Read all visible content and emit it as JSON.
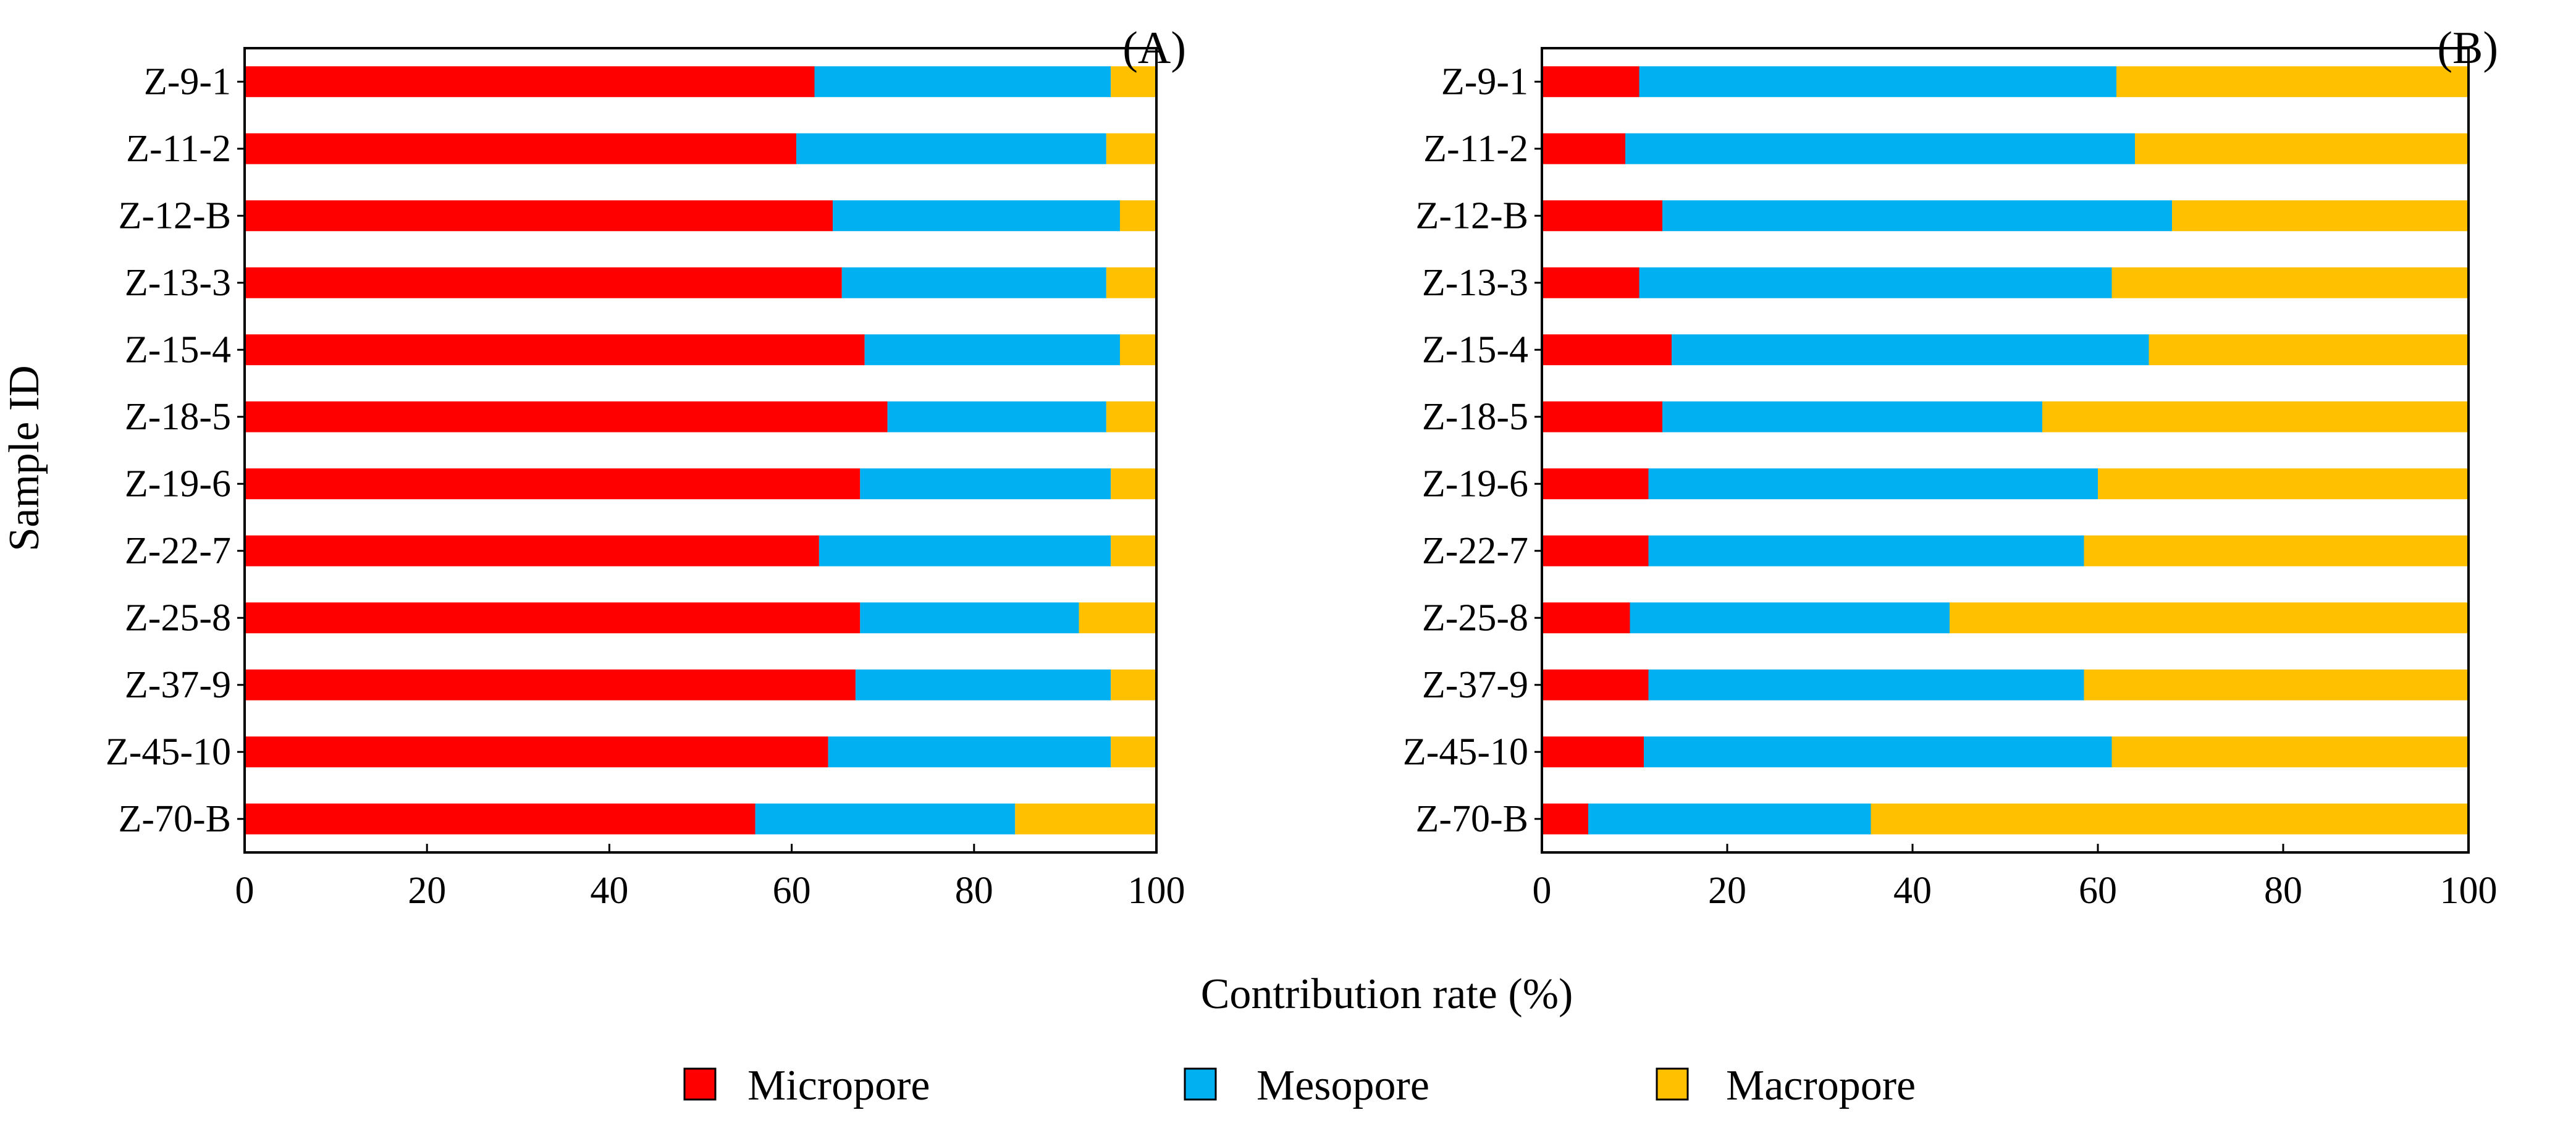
{
  "y_axis_title": "Sample ID",
  "shared_x_label": "Contribution rate (%)",
  "legend": {
    "items": [
      {
        "label": "Micropore",
        "color": "#ff0000"
      },
      {
        "label": "Mesopore",
        "color": "#00b0f0"
      },
      {
        "label": "Macropore",
        "color": "#ffc000"
      }
    ]
  },
  "chart_data": [
    {
      "type": "bar",
      "orientation": "horizontal",
      "stacked": true,
      "title": "(A)",
      "xlabel": "Contribution rate (%)",
      "ylabel": "Sample ID",
      "xlim": [
        0,
        100
      ],
      "xticks": [
        0,
        20,
        40,
        60,
        80,
        100
      ],
      "categories": [
        "Z-9-1",
        "Z-11-2",
        "Z-12-B",
        "Z-13-3",
        "Z-15-4",
        "Z-18-5",
        "Z-19-6",
        "Z-22-7",
        "Z-25-8",
        "Z-37-9",
        "Z-45-10",
        "Z-70-B"
      ],
      "series": [
        {
          "name": "Micropore",
          "color": "#ff0000",
          "values": [
            62.5,
            60.5,
            64.5,
            65.5,
            68.0,
            70.5,
            67.5,
            63.0,
            67.5,
            67.0,
            64.0,
            56.0
          ]
        },
        {
          "name": "Mesopore",
          "color": "#00b0f0",
          "values": [
            32.5,
            34.0,
            31.5,
            29.0,
            28.0,
            24.0,
            27.5,
            32.0,
            24.0,
            28.0,
            31.0,
            28.5
          ]
        },
        {
          "name": "Macropore",
          "color": "#ffc000",
          "values": [
            5.0,
            5.5,
            4.0,
            5.5,
            4.0,
            5.5,
            5.0,
            5.0,
            8.5,
            5.0,
            5.0,
            15.5
          ]
        }
      ]
    },
    {
      "type": "bar",
      "orientation": "horizontal",
      "stacked": true,
      "title": "(B)",
      "xlabel": "Contribution rate (%)",
      "ylabel": "Sample ID",
      "xlim": [
        0,
        100
      ],
      "xticks": [
        0,
        20,
        40,
        60,
        80,
        100
      ],
      "categories": [
        "Z-9-1",
        "Z-11-2",
        "Z-12-B",
        "Z-13-3",
        "Z-15-4",
        "Z-18-5",
        "Z-19-6",
        "Z-22-7",
        "Z-25-8",
        "Z-37-9",
        "Z-45-10",
        "Z-70-B"
      ],
      "series": [
        {
          "name": "Micropore",
          "color": "#ff0000",
          "values": [
            10.5,
            9.0,
            13.0,
            10.5,
            14.0,
            13.0,
            11.5,
            11.5,
            9.5,
            11.5,
            11.0,
            5.0
          ]
        },
        {
          "name": "Mesopore",
          "color": "#00b0f0",
          "values": [
            51.5,
            55.0,
            55.0,
            51.0,
            51.5,
            41.0,
            48.5,
            47.0,
            34.5,
            47.0,
            50.5,
            30.5
          ]
        },
        {
          "name": "Macropore",
          "color": "#ffc000",
          "values": [
            38.0,
            36.0,
            32.0,
            38.5,
            34.5,
            46.0,
            40.0,
            41.5,
            56.0,
            41.5,
            38.5,
            64.5
          ]
        }
      ]
    }
  ]
}
